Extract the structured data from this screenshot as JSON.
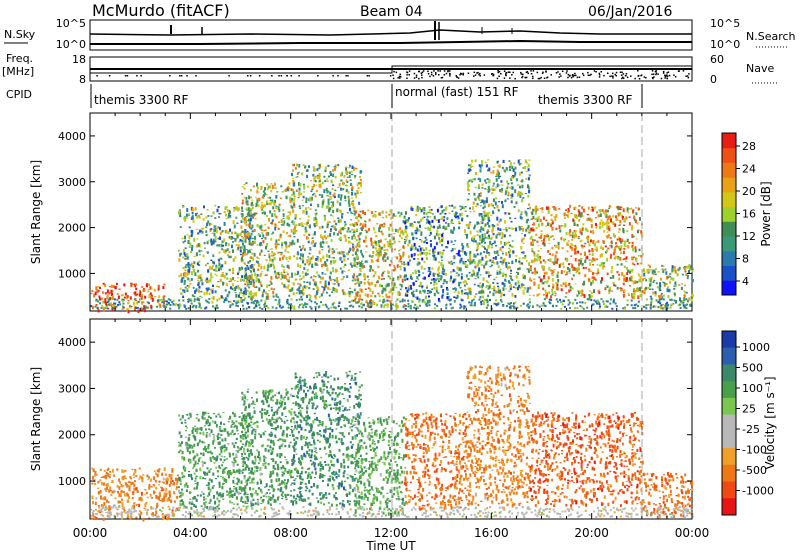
{
  "header": {
    "station": "McMurdo (fitACF)",
    "beam": "Beam 04",
    "date": "06/Jan/2016"
  },
  "noise_panel": {
    "left_label": "N.Sky",
    "right_label": "N.Search",
    "left_ticks": [
      "10^5",
      "10^0"
    ],
    "right_ticks": [
      "10^5",
      "10^0"
    ]
  },
  "freq_panel": {
    "left_label_top": "Freq.",
    "left_label_bottom": "[MHz]",
    "right_label": "Nave",
    "left_ticks": [
      "18",
      "8"
    ],
    "right_ticks": [
      "60",
      "0"
    ]
  },
  "cpid": {
    "label": "CPID",
    "segments": [
      {
        "text": "themis 3300 RF",
        "start_hour": 0,
        "end_hour": 12
      },
      {
        "text": "normal (fast) 151 RF",
        "start_hour": 12,
        "end_hour": 22
      },
      {
        "text": "themis 3300 RF",
        "start_hour": 22,
        "end_hour": 24
      }
    ],
    "label_texts": [
      "themis 3300 RF",
      "normal (fast) 151 RF",
      "themis 3300 RF"
    ]
  },
  "power_colorbar": {
    "label": "Power [dB]",
    "ticks": [
      "28",
      "24",
      "20",
      "16",
      "12",
      "8",
      "4"
    ],
    "colors": [
      "#1010ff",
      "#1a50c8",
      "#2a7ab0",
      "#3a9a78",
      "#3f8f55",
      "#9ed22a",
      "#d2c814",
      "#e8a214",
      "#ee7814",
      "#f05014",
      "#e81e14"
    ]
  },
  "velocity_colorbar": {
    "label": "Velocity [m s⁻¹]",
    "ticks": [
      "1000",
      "500",
      "100",
      "25",
      "-25",
      "-100",
      "-500",
      "-1000"
    ],
    "colors": [
      "#1a3aa8",
      "#2a5fb0",
      "#3a8a6a",
      "#4aa04a",
      "#78c850",
      "#b8b8b8",
      "#b8b8b8",
      "#f0a028",
      "#f07814",
      "#f04a14",
      "#e81414"
    ]
  },
  "chart_data": [
    {
      "type": "heatmap",
      "name": "power",
      "ylabel": "Slant Range [km]",
      "ylim": [
        180,
        4500
      ],
      "xlim": [
        0,
        24
      ],
      "ytick_labels": [
        "1000",
        "2000",
        "3000",
        "4000"
      ],
      "yticks": [
        1000,
        2000,
        3000,
        4000
      ],
      "colorbar_range": [
        0,
        30
      ],
      "echo_regions": [
        {
          "t0": 0.0,
          "t1": 3.0,
          "r0": 200,
          "r1": 800,
          "value": 26
        },
        {
          "t0": 3.5,
          "t1": 6.5,
          "r0": 400,
          "r1": 2500,
          "value": 12
        },
        {
          "t0": 6.0,
          "t1": 8.0,
          "r0": 500,
          "r1": 3000,
          "value": 16
        },
        {
          "t0": 8.0,
          "t1": 10.8,
          "r0": 500,
          "r1": 3400,
          "value": 14
        },
        {
          "t0": 10.5,
          "t1": 12.5,
          "r0": 300,
          "r1": 2400,
          "value": 18
        },
        {
          "t0": 12.5,
          "t1": 15.0,
          "r0": 400,
          "r1": 2500,
          "value": 10
        },
        {
          "t0": 15.0,
          "t1": 17.5,
          "r0": 500,
          "r1": 3500,
          "value": 12
        },
        {
          "t0": 17.5,
          "t1": 22.0,
          "r0": 500,
          "r1": 2500,
          "value": 20
        },
        {
          "t0": 22.0,
          "t1": 24.0,
          "r0": 250,
          "r1": 1200,
          "value": 14
        }
      ]
    },
    {
      "type": "heatmap",
      "name": "velocity",
      "ylabel": "Slant Range [km]",
      "xlabel": "Time UT",
      "ylim": [
        180,
        4500
      ],
      "xlim": [
        0,
        24
      ],
      "ytick_labels": [
        "1000",
        "2000",
        "3000",
        "4000"
      ],
      "yticks": [
        1000,
        2000,
        3000,
        4000
      ],
      "xtick_labels": [
        "00:00",
        "04:00",
        "08:00",
        "12:00",
        "16:00",
        "20:00",
        "00:00"
      ],
      "xticks": [
        0,
        4,
        8,
        12,
        16,
        20,
        24
      ],
      "echo_regions": [
        {
          "t0": 0.0,
          "t1": 3.5,
          "r0": 200,
          "r1": 1300,
          "value": -150
        },
        {
          "t0": 3.5,
          "t1": 6.5,
          "r0": 400,
          "r1": 2500,
          "value": 200
        },
        {
          "t0": 6.0,
          "t1": 8.0,
          "r0": 500,
          "r1": 3000,
          "value": 200
        },
        {
          "t0": 8.0,
          "t1": 10.8,
          "r0": 500,
          "r1": 3400,
          "value": 300
        },
        {
          "t0": 10.5,
          "t1": 12.5,
          "r0": 300,
          "r1": 2400,
          "value": 150
        },
        {
          "t0": 12.5,
          "t1": 15.0,
          "r0": 400,
          "r1": 2500,
          "value": -200
        },
        {
          "t0": 15.0,
          "t1": 17.5,
          "r0": 500,
          "r1": 3500,
          "value": -150
        },
        {
          "t0": 17.5,
          "t1": 22.0,
          "r0": 500,
          "r1": 2500,
          "value": -300
        },
        {
          "t0": 22.0,
          "t1": 24.0,
          "r0": 250,
          "r1": 1200,
          "value": -200
        }
      ]
    }
  ]
}
